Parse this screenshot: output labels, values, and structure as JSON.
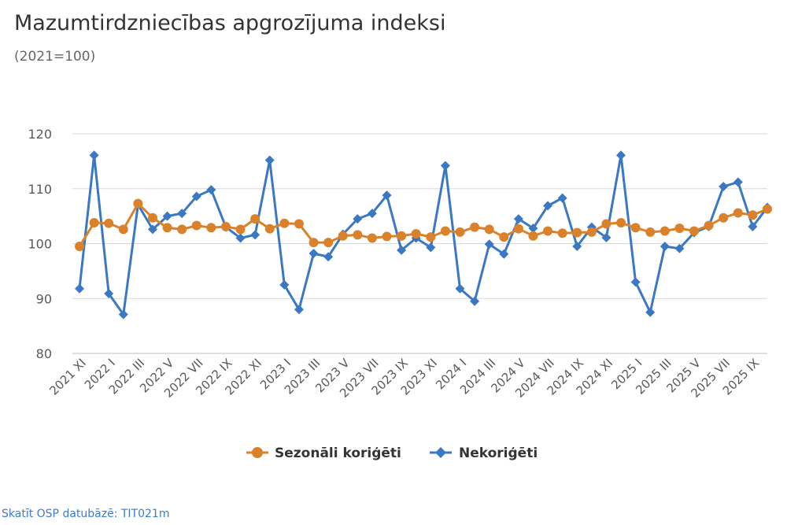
{
  "title": "Mazumtirdzniecības apgrozījuma indeksi",
  "subtitle": "(2021=100)",
  "source_link": "Skatīt OSP datubāzē: TIT021m",
  "chart_data": {
    "type": "line",
    "title": "Mazumtirdzniecības apgrozījuma indeksi",
    "subtitle": "(2021=100)",
    "ylim": [
      80,
      120
    ],
    "yticks": [
      80,
      90,
      100,
      110,
      120
    ],
    "grid": true,
    "legend_position": "bottom",
    "x": [
      "2021 XI",
      "2021 XII",
      "2022 I",
      "2022 II",
      "2022 III",
      "2022 IV",
      "2022 V",
      "2022 VI",
      "2022 VII",
      "2022 VIII",
      "2022 IX",
      "2022 X",
      "2022 XI",
      "2022 XII",
      "2023 I",
      "2023 II",
      "2023 III",
      "2023 IV",
      "2023 V",
      "2023 VI",
      "2023 VII",
      "2023 VIII",
      "2023 IX",
      "2023 X",
      "2023 XI",
      "2023 XII",
      "2024 I",
      "2024 II",
      "2024 III",
      "2024 IV",
      "2024 V",
      "2024 VI",
      "2024 VII",
      "2024 VIII",
      "2024 IX",
      "2024 X",
      "2024 XI",
      "2024 XII",
      "2025 I",
      "2025 II",
      "2025 III",
      "2025 IV",
      "2025 V",
      "2025 VI",
      "2025 VII",
      "2025 VIII",
      "2025 IX",
      "2025 X"
    ],
    "xtick_labels": [
      "2021 XI",
      "2022 I",
      "2022 III",
      "2022 V",
      "2022 VII",
      "2022 IX",
      "2022 XI",
      "2023 I",
      "2023 III",
      "2023 V",
      "2023 VII",
      "2023 IX",
      "2023 XI",
      "2024 I",
      "2024 III",
      "2024 V",
      "2024 VII",
      "2024 IX",
      "2024 XI",
      "2025 I",
      "2025 III",
      "2025 V",
      "2025 VII",
      "2025 IX"
    ],
    "series": [
      {
        "name": "Sezonāli koriģēti",
        "color": "#d9822b",
        "marker": "circle",
        "values": [
          99.5,
          103.8,
          103.7,
          102.6,
          107.3,
          104.7,
          102.9,
          102.6,
          103.3,
          102.9,
          103.1,
          102.6,
          104.5,
          102.7,
          103.7,
          103.6,
          100.2,
          100.2,
          101.4,
          101.6,
          101.0,
          101.3,
          101.4,
          101.8,
          101.2,
          102.3,
          102.1,
          103.0,
          102.6,
          101.2,
          102.7,
          101.4,
          102.3,
          101.9,
          102.0,
          102.1,
          103.6,
          103.8,
          102.9,
          102.1,
          102.3,
          102.8,
          102.3,
          103.3,
          104.7,
          105.6,
          105.2,
          106.3
        ]
      },
      {
        "name": "Nekoriģēti",
        "color": "#3b78c4",
        "marker": "diamond",
        "values": [
          91.8,
          116.1,
          90.9,
          87.1,
          107.1,
          102.6,
          105.0,
          105.5,
          108.6,
          109.8,
          103.0,
          101.0,
          101.6,
          115.2,
          92.5,
          88.0,
          98.2,
          97.6,
          101.7,
          104.5,
          105.5,
          108.8,
          98.8,
          101.0,
          99.3,
          114.2,
          91.8,
          89.5,
          99.9,
          98.1,
          104.5,
          102.8,
          106.9,
          108.3,
          99.5,
          103.0,
          101.1,
          116.1,
          93.0,
          87.5,
          99.5,
          99.1,
          102.0,
          103.1,
          110.4,
          111.2,
          103.1,
          106.6
        ]
      }
    ]
  }
}
